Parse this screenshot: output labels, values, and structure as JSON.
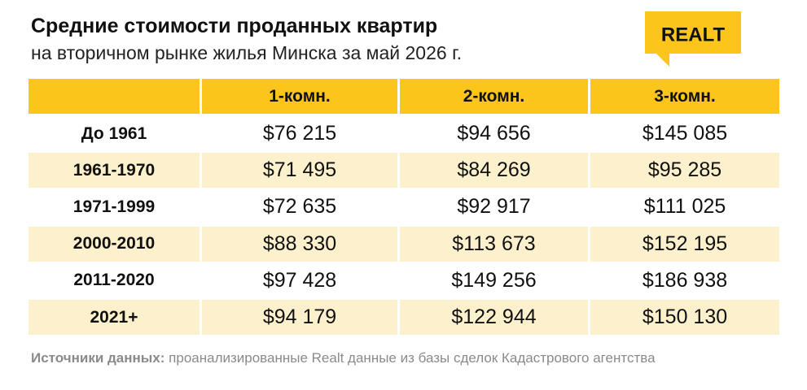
{
  "header": {
    "title": "Средние стоимости проданных квартир",
    "subtitle": "на вторичном рынке жилья Минска за май 2026 г.",
    "logo": "REALT"
  },
  "table": {
    "columns": [
      "1-комн.",
      "2-комн.",
      "3-комн."
    ],
    "rows": [
      [
        "До 1961",
        "$76 215",
        "$94 656",
        "$145 085"
      ],
      [
        "1961-1970",
        "$71 495",
        "$84 269",
        "$95 285"
      ],
      [
        "1971-1999",
        "$72 635",
        "$92 917",
        "$111 025"
      ],
      [
        "2000-2010",
        "$88 330",
        "$113 673",
        "$152 195"
      ],
      [
        "2011-2020",
        "$97 428",
        "$149 256",
        "$186 938"
      ],
      [
        "2021+",
        "$94 179",
        "$122 944",
        "$150 130"
      ]
    ]
  },
  "footer": {
    "label": "Источники данных:",
    "text": "проанализированные Realt данные из базы сделок Кадастрового агентства"
  }
}
